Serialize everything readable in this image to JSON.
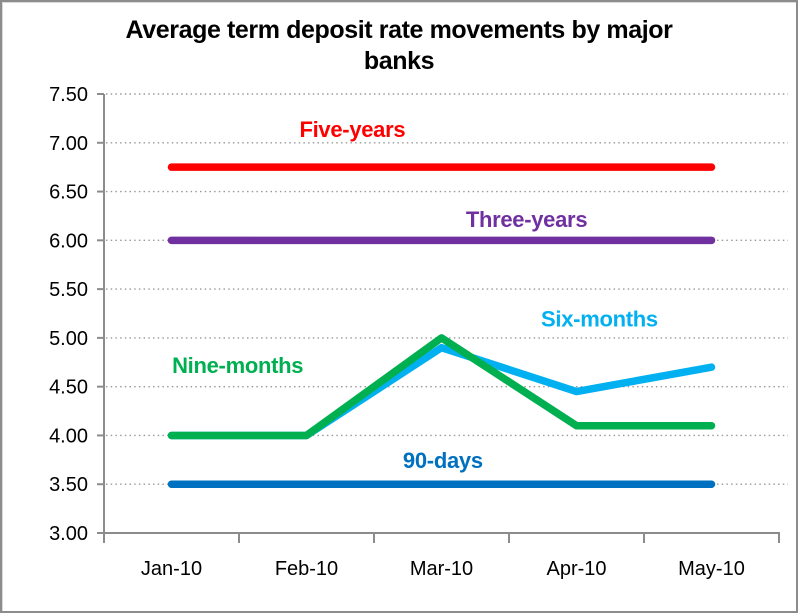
{
  "window": {
    "background": "#ffffff",
    "border_color": "#8c8c8c"
  },
  "chart_data": {
    "type": "line",
    "title": "Average term deposit rate movements by major banks",
    "title_lines": [
      "Average term deposit rate movements by major",
      "banks"
    ],
    "x_categories": [
      "Jan-10",
      "Feb-10",
      "Mar-10",
      "Apr-10",
      "May-10"
    ],
    "xlabel": "",
    "ylabel": "",
    "ylim": [
      3.0,
      7.5
    ],
    "ytick_step": 0.5,
    "ytick_labels": [
      "3.00",
      "3.50",
      "4.00",
      "4.50",
      "5.00",
      "5.50",
      "6.00",
      "6.50",
      "7.00",
      "7.50"
    ],
    "grid": "horizontal-dotted",
    "gridline_color": "#999999",
    "axis_color": "#8c8c8c",
    "legend_position": "inline-series-labels",
    "series": [
      {
        "name": "Six-months",
        "color": "#00B0F0",
        "values": [
          4.0,
          4.0,
          4.9,
          4.45,
          4.7
        ],
        "label_anchor": {
          "cat": 3.17,
          "value": 5.2
        }
      },
      {
        "name": "Nine-months",
        "color": "#00B050",
        "values": [
          4.0,
          4.0,
          5.0,
          4.1,
          4.1
        ],
        "label_anchor": {
          "cat": 0.49,
          "value": 4.72
        }
      },
      {
        "name": "Five-years",
        "color": "#FF0000",
        "values": [
          6.75,
          6.75,
          6.75,
          6.75,
          6.75
        ],
        "label_anchor": {
          "cat": 1.34,
          "value": 7.14
        }
      },
      {
        "name": "Three-years",
        "color": "#7030A0",
        "values": [
          6.0,
          6.0,
          6.0,
          6.0,
          6.0
        ],
        "label_anchor": {
          "cat": 2.63,
          "value": 6.22
        }
      },
      {
        "name": "90-days",
        "color": "#0070C0",
        "values": [
          3.5,
          3.5,
          3.5,
          3.5,
          3.5
        ],
        "label_anchor": {
          "cat": 2.01,
          "value": 3.75
        }
      }
    ]
  }
}
